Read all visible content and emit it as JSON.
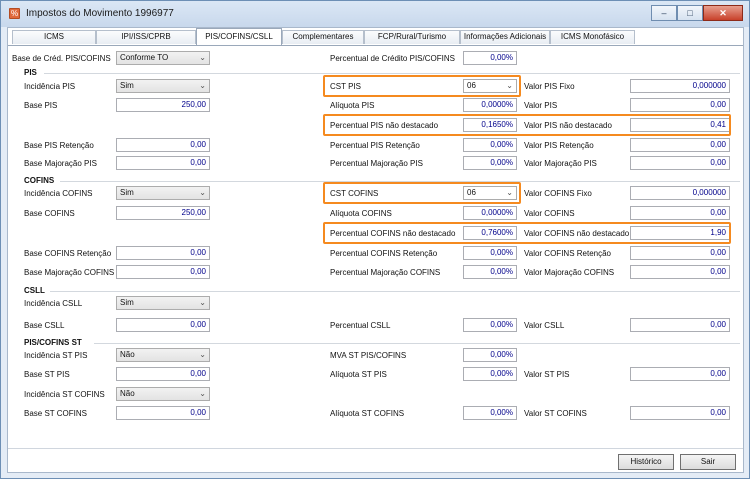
{
  "window": {
    "title": "Impostos do Movimento 1996977",
    "btn_min": "–",
    "btn_max": "□",
    "btn_close": "✕"
  },
  "tabs": [
    "ICMS",
    "IPI/ISS/CPRB",
    "PIS/COFINS/CSLL",
    "Complementares",
    "FCP/Rural/Turismo",
    "Informações Adicionais",
    "ICMS Monofásico"
  ],
  "top": {
    "base_cred_label": "Base de Créd. PIS/COFINS",
    "base_cred_value": "Conforme TO",
    "perc_credito_label": "Percentual de Crédito PIS/COFINS",
    "perc_credito_value": "0,00%"
  },
  "pis": {
    "section": "PIS",
    "incidencia_label": "Incidência PIS",
    "incidencia_value": "Sim",
    "cst_label": "CST PIS",
    "cst_value": "06",
    "valor_fixo_label": "Valor PIS Fixo",
    "valor_fixo_value": "0,000000",
    "base_label": "Base PIS",
    "base_value": "250,00",
    "aliquota_label": "Alíquota PIS",
    "aliquota_value": "0,0000%",
    "valor_label": "Valor PIS",
    "valor_value": "0,00",
    "perc_nd_label": "Percentual PIS não destacado",
    "perc_nd_value": "0,1650%",
    "valor_nd_label": "Valor PIS não destacado",
    "valor_nd_value": "0,41",
    "base_ret_label": "Base PIS Retenção",
    "base_ret_value": "0,00",
    "perc_ret_label": "Percentual PIS Retenção",
    "perc_ret_value": "0,00%",
    "valor_ret_label": "Valor PIS Retenção",
    "valor_ret_value": "0,00",
    "base_maj_label": "Base Majoração PIS",
    "base_maj_value": "0,00",
    "perc_maj_label": "Percentual Majoração PIS",
    "perc_maj_value": "0,00%",
    "valor_maj_label": "Valor Majoração PIS",
    "valor_maj_value": "0,00"
  },
  "cofins": {
    "section": "COFINS",
    "incidencia_label": "Incidência COFINS",
    "incidencia_value": "Sim",
    "cst_label": "CST COFINS",
    "cst_value": "06",
    "valor_fixo_label": "Valor COFINS Fixo",
    "valor_fixo_value": "0,000000",
    "base_label": "Base COFINS",
    "base_value": "250,00",
    "aliquota_label": "Alíquota COFINS",
    "aliquota_value": "0,0000%",
    "valor_label": "Valor COFINS",
    "valor_value": "0,00",
    "perc_nd_label": "Percentual COFINS não destacado",
    "perc_nd_value": "0,7600%",
    "valor_nd_label": "Valor COFINS não destacado",
    "valor_nd_value": "1,90",
    "base_ret_label": "Base COFINS Retenção",
    "base_ret_value": "0,00",
    "perc_ret_label": "Percentual COFINS Retenção",
    "perc_ret_value": "0,00%",
    "valor_ret_label": "Valor COFINS Retenção",
    "valor_ret_value": "0,00",
    "base_maj_label": "Base Majoração COFINS",
    "base_maj_value": "0,00",
    "perc_maj_label": "Percentual Majoração COFINS",
    "perc_maj_value": "0,00%",
    "valor_maj_label": "Valor Majoração COFINS",
    "valor_maj_value": "0,00"
  },
  "csll": {
    "section": "CSLL",
    "incidencia_label": "Incidência CSLL",
    "incidencia_value": "Sim",
    "base_label": "Base CSLL",
    "base_value": "0,00",
    "perc_label": "Percentual CSLL",
    "perc_value": "0,00%",
    "valor_label": "Valor CSLL",
    "valor_value": "0,00"
  },
  "st": {
    "section": "PIS/COFINS ST",
    "inc_pis_label": "Incidência ST PIS",
    "inc_pis_value": "Não",
    "mva_label": "MVA ST PIS/COFINS",
    "mva_value": "0,00%",
    "base_pis_label": "Base ST PIS",
    "base_pis_value": "0,00",
    "aliq_pis_label": "Alíquota ST PIS",
    "aliq_pis_value": "0,00%",
    "valor_pis_label": "Valor ST PIS",
    "valor_pis_value": "0,00",
    "inc_cofins_label": "Incidência ST COFINS",
    "inc_cofins_value": "Não",
    "base_cofins_label": "Base ST COFINS",
    "base_cofins_value": "0,00",
    "aliq_cofins_label": "Alíquota ST COFINS",
    "aliq_cofins_value": "0,00%",
    "valor_cofins_label": "Valor ST COFINS",
    "valor_cofins_value": "0,00"
  },
  "buttons": {
    "historico": "Histórico",
    "sair": "Sair"
  },
  "icons": {
    "dropdown": "chevron-down-icon",
    "app": "app-icon"
  },
  "colors": {
    "highlight": "#f58a1f",
    "value_text": "#00008b",
    "title_bar": "#c8d8ec"
  }
}
